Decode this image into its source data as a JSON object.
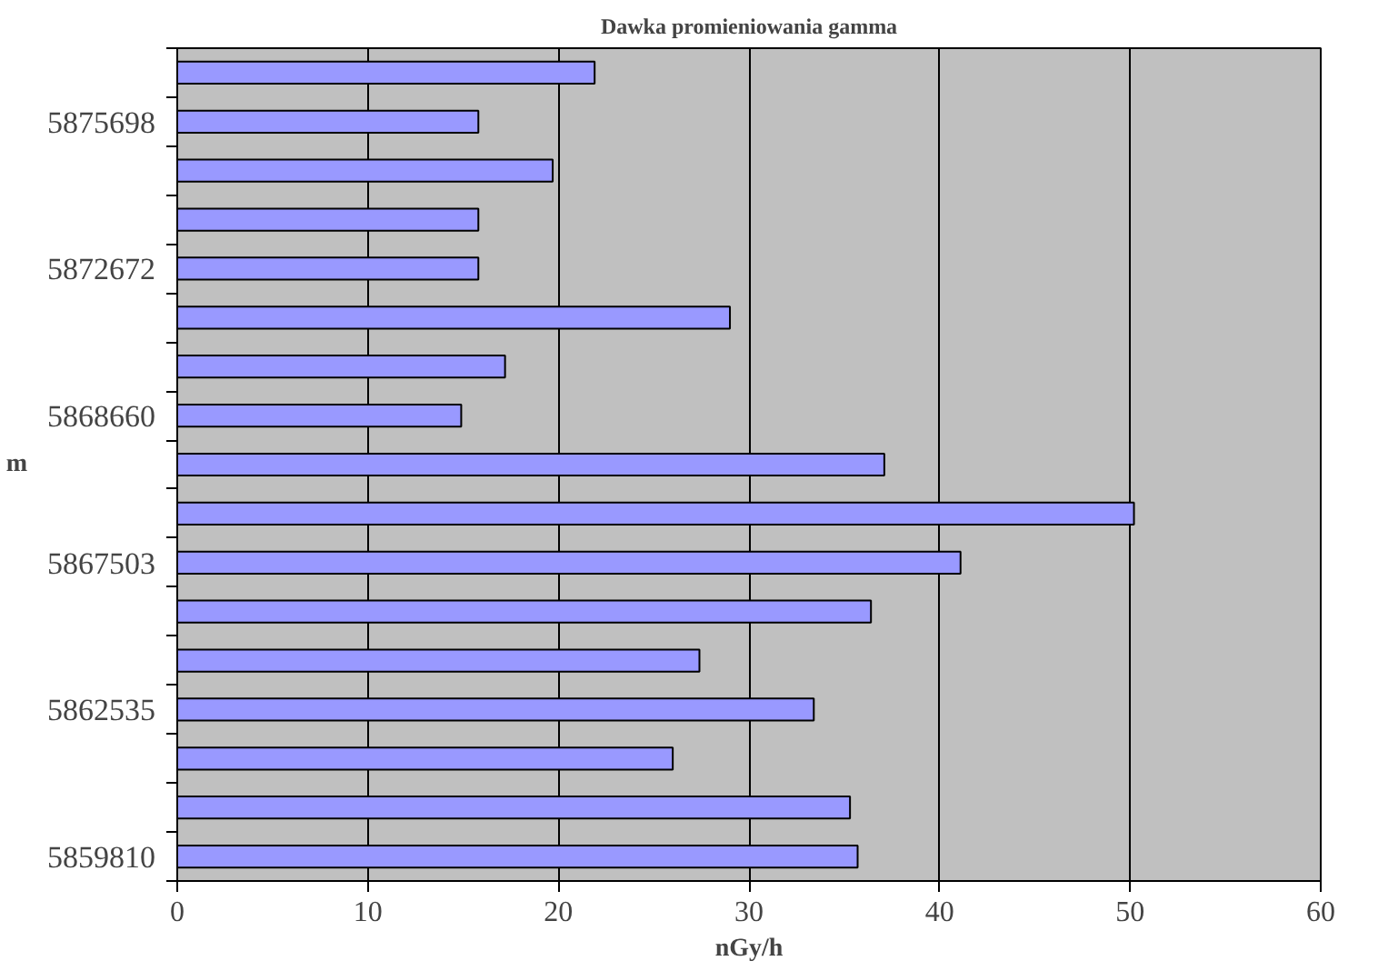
{
  "chart_data": {
    "type": "bar",
    "orientation": "horizontal",
    "title": "Dawka promieniowania gamma",
    "xlabel": "nGy/h",
    "ylabel": "m",
    "categories": [
      null,
      "5875698",
      null,
      null,
      "5872672",
      null,
      null,
      "5868660",
      null,
      null,
      "5867503",
      null,
      null,
      "5862535",
      null,
      null,
      "5859810"
    ],
    "values": [
      21.9,
      15.8,
      19.7,
      15.8,
      15.8,
      29.0,
      17.2,
      14.9,
      37.1,
      50.2,
      41.1,
      36.4,
      27.4,
      33.4,
      26.0,
      35.3,
      35.7
    ],
    "color": "#9999ff",
    "xlim": [
      0,
      60
    ],
    "xticks": [
      0,
      10,
      20,
      30,
      40,
      50,
      60
    ],
    "grid": "x"
  }
}
